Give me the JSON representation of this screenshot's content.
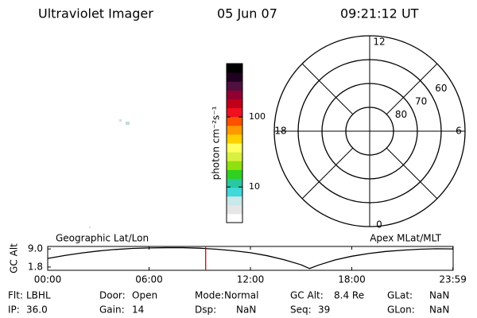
{
  "header": {
    "title": "Ultraviolet Imager",
    "date": "05 Jun 07",
    "time": "09:21:12 UT"
  },
  "chart_data": [
    {
      "type": "colorbar",
      "label": "photon cm⁻²s⁻¹",
      "log_scale": true,
      "ylim": [
        3.1,
        577
      ],
      "yticks": [
        10,
        100
      ],
      "colors": [
        "#ffffff",
        "#e6e6e6",
        "#c8e8ea",
        "#40d8d8",
        "#28c8a0",
        "#30d020",
        "#90e010",
        "#d8f040",
        "#ffff60",
        "#ffd000",
        "#ff9800",
        "#ff5000",
        "#f01020",
        "#c00018",
        "#900030",
        "#501040",
        "#200020",
        "#000000"
      ]
    },
    {
      "type": "polar",
      "rlim": [
        90,
        50
      ],
      "rticks": [
        80,
        70,
        60
      ],
      "angle_ticks": [
        12,
        18,
        6,
        0
      ],
      "color": "#000000"
    },
    {
      "type": "line",
      "title": "Geographic Lat/Lon",
      "subtitle": "Apex MLat/MLT",
      "ylabel": "GC Alt",
      "x": [
        0,
        1,
        2,
        3,
        4,
        5,
        6,
        7,
        8,
        9,
        10,
        11,
        12,
        13,
        14,
        15,
        15.5,
        16,
        17,
        18,
        19,
        20,
        21,
        22,
        23,
        24
      ],
      "values": [
        5.2,
        6.4,
        7.4,
        8.2,
        8.8,
        9.2,
        9.4,
        9.5,
        9.5,
        9.3,
        8.9,
        8.3,
        7.5,
        6.3,
        4.7,
        2.7,
        1.2,
        2.5,
        4.6,
        6.1,
        7.2,
        8.0,
        8.5,
        8.9,
        9.1,
        9.0
      ],
      "xlim": [
        0,
        24
      ],
      "ylim": [
        0.5,
        10
      ],
      "xticks": [
        {
          "value": 0,
          "label": "00:00"
        },
        {
          "value": 6,
          "label": "06:00"
        },
        {
          "value": 12,
          "label": "12:00"
        },
        {
          "value": 18,
          "label": "18:00"
        },
        {
          "value": 23.983,
          "label": "23:59"
        }
      ],
      "yticks": [
        {
          "value": 1.8,
          "label": "1.8"
        },
        {
          "value": 9,
          "label": "9.0"
        }
      ],
      "color": "#000000",
      "marker_x": 9.35,
      "marker_color": "#e00000"
    }
  ],
  "info": [
    [
      {
        "label": "Flt:",
        "value": "LBHL"
      },
      {
        "label": "Door:",
        "value": "Open"
      },
      {
        "label": "Mode:",
        "value": "Normal"
      },
      {
        "label": "GC Alt:",
        "value": "8.4 Re"
      },
      {
        "label": "GLat:",
        "value": "NaN"
      }
    ],
    [
      {
        "label": "IP:",
        "value": "36.0"
      },
      {
        "label": "Gain:",
        "value": "14"
      },
      {
        "label": "Dsp:",
        "value": "NaN"
      },
      {
        "label": "Seq:",
        "value": "39"
      },
      {
        "label": "GLon:",
        "value": "NaN"
      }
    ]
  ]
}
